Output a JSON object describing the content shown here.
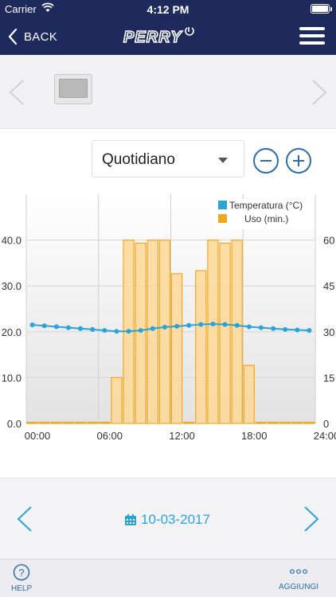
{
  "status_bar": {
    "carrier": "Carrier",
    "time": "4:12 PM"
  },
  "nav": {
    "back_label": "BACK",
    "logo_text": "PERRY"
  },
  "mode_select": {
    "value": "Quotidiano"
  },
  "date": {
    "value": "10-03-2017"
  },
  "bottom": {
    "help_label": "HELP",
    "add_label": "AGGIUNGI"
  },
  "colors": {
    "nav_bg": "#1f2a5c",
    "accent": "#2aa3d6",
    "bar_fill": "#f9d48e",
    "bar_stroke": "#f0a820",
    "line": "#2aa3d6"
  },
  "chart_data": {
    "type": "bar",
    "title": "",
    "legend": {
      "placement": "top-right",
      "entries": [
        "Temperatura (°C)",
        "Uso (min.)"
      ]
    },
    "x": [
      0,
      1,
      2,
      3,
      4,
      5,
      6,
      7,
      8,
      9,
      10,
      11,
      12,
      13,
      14,
      15,
      16,
      17,
      18,
      19,
      20,
      21,
      22,
      23
    ],
    "xticks": [
      "00:00",
      "06:00",
      "12:00",
      "18:00",
      "24:00"
    ],
    "xtick_values": [
      0,
      6,
      12,
      18,
      24
    ],
    "xlim": [
      0,
      24
    ],
    "left_axis": {
      "ticks": [
        "0.0",
        "10.0",
        "20.0",
        "30.0",
        "40.0"
      ],
      "tick_values": [
        0,
        10,
        20,
        30,
        40
      ],
      "ylim": [
        0,
        50
      ]
    },
    "right_axis": {
      "ticks": [
        "0",
        "15",
        "30",
        "45",
        "60"
      ],
      "tick_values": [
        0,
        15,
        30,
        45,
        60
      ],
      "ylim": [
        0,
        75
      ]
    },
    "grid": true,
    "series": [
      {
        "name": "Uso (min.)",
        "type": "bar",
        "axis": "right",
        "color": "#f0a820",
        "values": [
          0,
          0,
          0,
          0,
          0,
          0,
          0,
          15,
          60,
          59,
          60,
          60,
          49,
          0,
          50,
          60,
          59,
          60,
          19,
          0,
          0,
          0,
          0,
          0
        ]
      },
      {
        "name": "Temperatura (°C)",
        "type": "line",
        "axis": "left",
        "color": "#2aa3d6",
        "x": [
          0,
          1,
          2,
          3,
          4,
          5,
          6,
          7,
          8,
          9,
          10,
          11,
          12,
          13,
          14,
          15,
          16,
          17,
          18,
          19,
          20,
          21,
          22,
          23
        ],
        "values": [
          21.5,
          21.3,
          21.1,
          20.9,
          20.7,
          20.5,
          20.3,
          20.1,
          20.1,
          20.3,
          20.7,
          21.0,
          21.2,
          21.4,
          21.6,
          21.7,
          21.6,
          21.4,
          21.1,
          20.9,
          20.7,
          20.5,
          20.4,
          20.3
        ]
      }
    ]
  }
}
